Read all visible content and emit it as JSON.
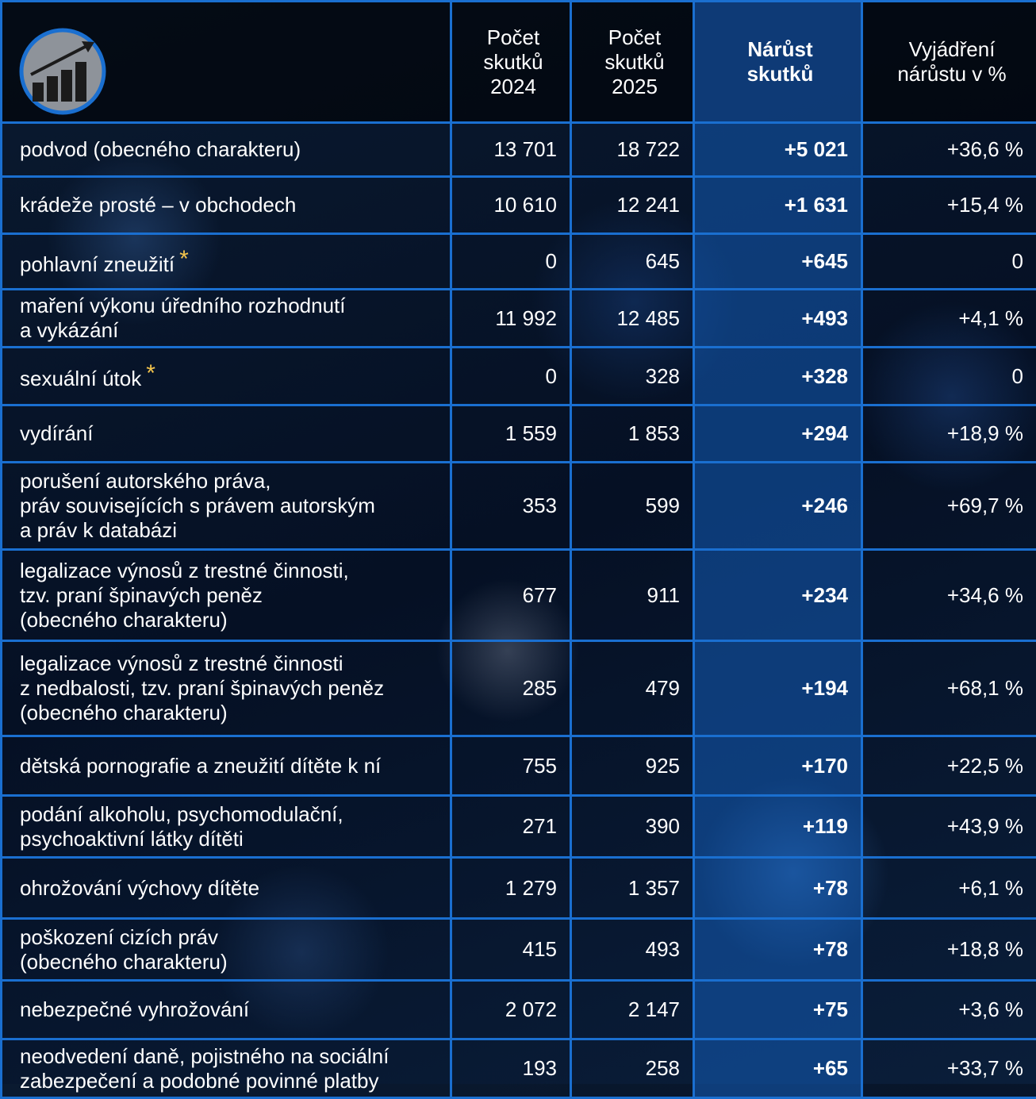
{
  "table": {
    "header": [
      "Počet\nskutků\n2024",
      "Počet\nskutků\n2025",
      "Nárůst\nskutků",
      "Vyjádření\nnárůstu v %"
    ],
    "rows": [
      {
        "label": "podvod (obecného charakteru)",
        "cells": [
          "13 701",
          "18 722",
          "+5 021",
          "+36,6 %"
        ]
      },
      {
        "label": "krádeže prosté – v obchodech",
        "cells": [
          "10 610",
          "12 241",
          "+1 631",
          "+15,4 %"
        ]
      },
      {
        "label": "pohlavní zneužití",
        "mark": "*",
        "cells": [
          "0",
          "645",
          "+645",
          "0"
        ]
      },
      {
        "label": "maření výkonu úředního rozhodnutí\na vykázání",
        "cells": [
          "11 992",
          "12 485",
          "+493",
          "+4,1 %"
        ]
      },
      {
        "label": "sexuální útok",
        "mark": "*",
        "cells": [
          "0",
          "328",
          "+328",
          "0"
        ]
      },
      {
        "label": "vydírání",
        "cells": [
          "1 559",
          "1 853",
          "+294",
          "+18,9 %"
        ]
      },
      {
        "label": "porušení autorského práva,\npráv souvisejících s právem autorským\na práv k databázi",
        "cells": [
          "353",
          "599",
          "+246",
          "+69,7 %"
        ]
      },
      {
        "label": "legalizace výnosů z trestné činnosti,\ntzv. praní špinavých peněz\n(obecného charakteru)",
        "cells": [
          "677",
          "911",
          "+234",
          "+34,6 %"
        ]
      },
      {
        "label": "legalizace výnosů z trestné činnosti\nz nedbalosti, tzv. praní špinavých peněz\n(obecného charakteru)",
        "cells": [
          "285",
          "479",
          "+194",
          "+68,1 %"
        ]
      },
      {
        "label": "dětská pornografie a zneužití dítěte k ní",
        "cells": [
          "755",
          "925",
          "+170",
          "+22,5 %"
        ]
      },
      {
        "label": "podání alkoholu, psychomodulační,\npsychoaktivní látky dítěti",
        "cells": [
          "271",
          "390",
          "+119",
          "+43,9 %"
        ]
      },
      {
        "label": "ohrožování výchovy dítěte",
        "cells": [
          "1 279",
          "1 357",
          "+78",
          "+6,1 %"
        ]
      },
      {
        "label": "poškození cizích práv\n(obecného charakteru)",
        "cells": [
          "415",
          "493",
          "+78",
          "+18,8 %"
        ]
      },
      {
        "label": "nebezpečné vyhrožování",
        "cells": [
          "2 072",
          "2 147",
          "+75",
          "+3,6 %"
        ]
      },
      {
        "label": "neodvedení daně, pojistného na sociální\nzabezpečení a podobné povinné platby",
        "cells": [
          "193",
          "258",
          "+65",
          "+33,7 %"
        ]
      }
    ]
  }
}
